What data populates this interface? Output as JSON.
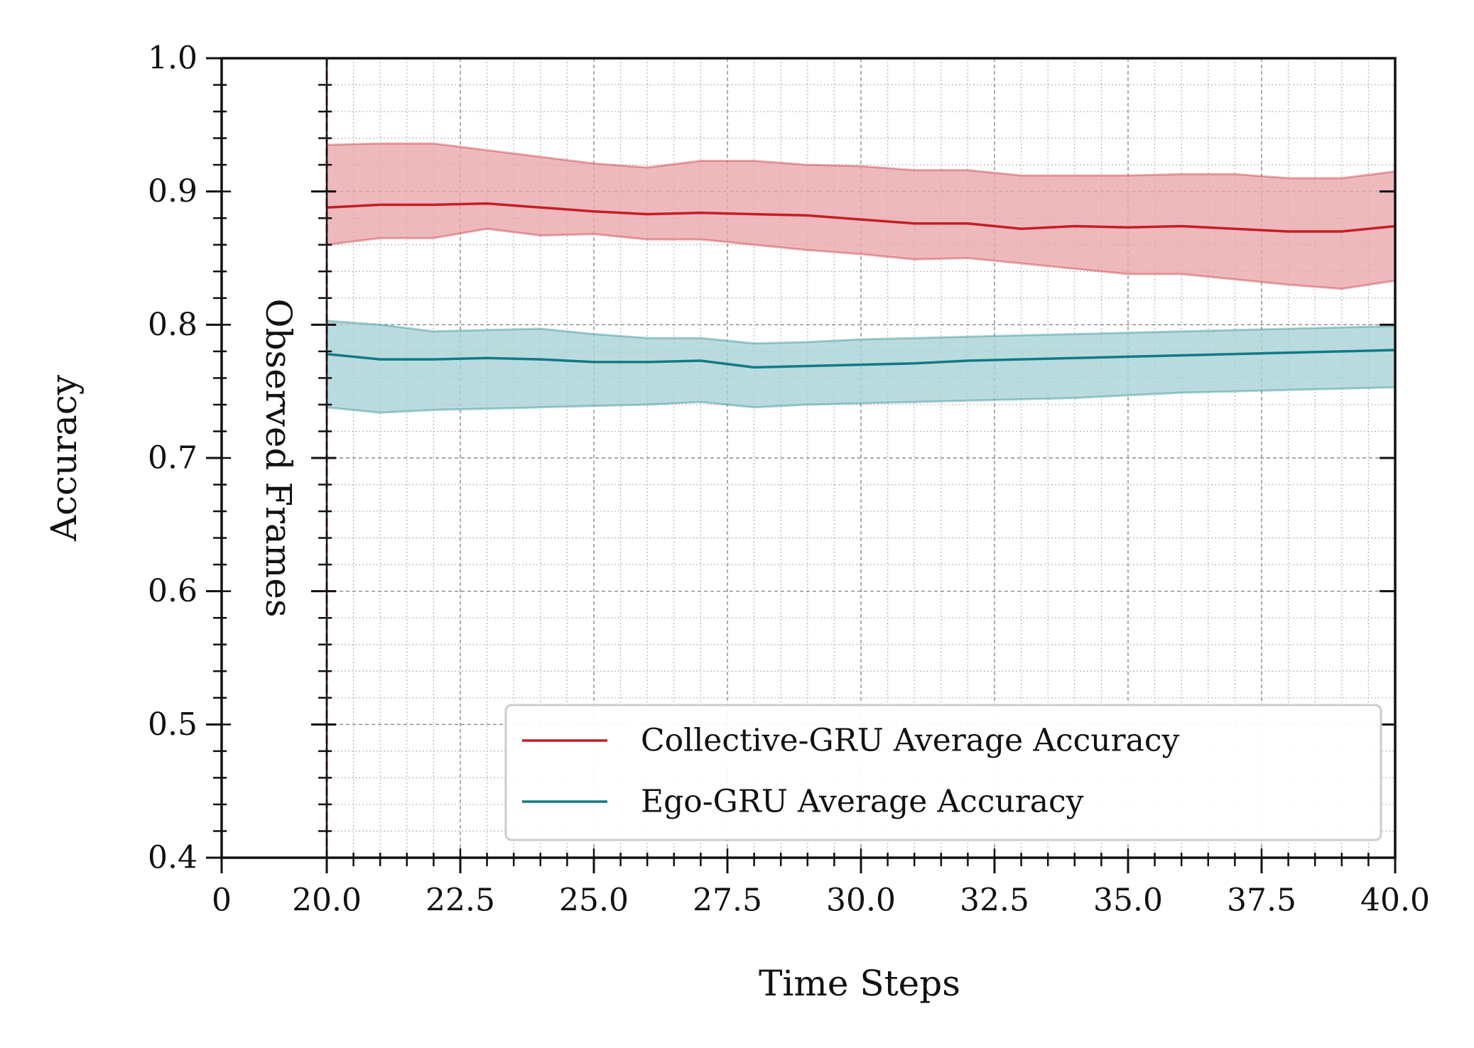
{
  "chart_data": {
    "type": "line",
    "title": "",
    "xlabel": "Time Steps",
    "ylabel": "Accuracy",
    "xlim": [
      0,
      40
    ],
    "ylim": [
      0.4,
      1.0
    ],
    "x_ticks": [
      "0",
      "20.0",
      "22.5",
      "25.0",
      "27.5",
      "30.0",
      "32.5",
      "35.0",
      "37.5",
      "40.0"
    ],
    "y_ticks": [
      "0.4",
      "0.5",
      "0.6",
      "0.7",
      "0.8",
      "0.9",
      "1.0"
    ],
    "grid": true,
    "legend_position": "lower-right",
    "annotation": {
      "text": "Observed Frames",
      "x": 20
    },
    "x": [
      20,
      21,
      22,
      23,
      24,
      25,
      26,
      27,
      28,
      29,
      30,
      31,
      32,
      33,
      34,
      35,
      36,
      37,
      38,
      39,
      40
    ],
    "series": [
      {
        "name": "Collective-GRU Average Accuracy",
        "color": "#c41e24",
        "band_color": "#e8a8ac",
        "values": [
          0.888,
          0.89,
          0.89,
          0.891,
          0.888,
          0.885,
          0.883,
          0.884,
          0.883,
          0.882,
          0.879,
          0.876,
          0.876,
          0.872,
          0.874,
          0.873,
          0.874,
          0.872,
          0.87,
          0.87,
          0.874
        ],
        "upper": [
          0.935,
          0.936,
          0.936,
          0.931,
          0.926,
          0.921,
          0.918,
          0.923,
          0.923,
          0.92,
          0.919,
          0.916,
          0.916,
          0.912,
          0.912,
          0.912,
          0.913,
          0.913,
          0.91,
          0.91,
          0.915
        ],
        "lower": [
          0.86,
          0.865,
          0.865,
          0.872,
          0.867,
          0.868,
          0.864,
          0.864,
          0.86,
          0.856,
          0.853,
          0.849,
          0.85,
          0.846,
          0.842,
          0.838,
          0.838,
          0.834,
          0.83,
          0.827,
          0.833
        ]
      },
      {
        "name": "Ego-GRU Average Accuracy",
        "color": "#117a85",
        "band_color": "#a9d2d6",
        "values": [
          0.778,
          0.774,
          0.774,
          0.775,
          0.774,
          0.772,
          0.772,
          0.773,
          0.768,
          0.769,
          0.77,
          0.771,
          0.773,
          0.774,
          0.775,
          0.776,
          0.777,
          0.778,
          0.779,
          0.78,
          0.781
        ],
        "upper": [
          0.803,
          0.8,
          0.795,
          0.796,
          0.797,
          0.793,
          0.79,
          0.79,
          0.786,
          0.787,
          0.789,
          0.79,
          0.791,
          0.792,
          0.793,
          0.794,
          0.795,
          0.796,
          0.797,
          0.798,
          0.799
        ],
        "lower": [
          0.738,
          0.734,
          0.736,
          0.737,
          0.738,
          0.739,
          0.74,
          0.742,
          0.738,
          0.74,
          0.741,
          0.742,
          0.743,
          0.744,
          0.745,
          0.747,
          0.749,
          0.75,
          0.751,
          0.752,
          0.753
        ]
      }
    ]
  }
}
